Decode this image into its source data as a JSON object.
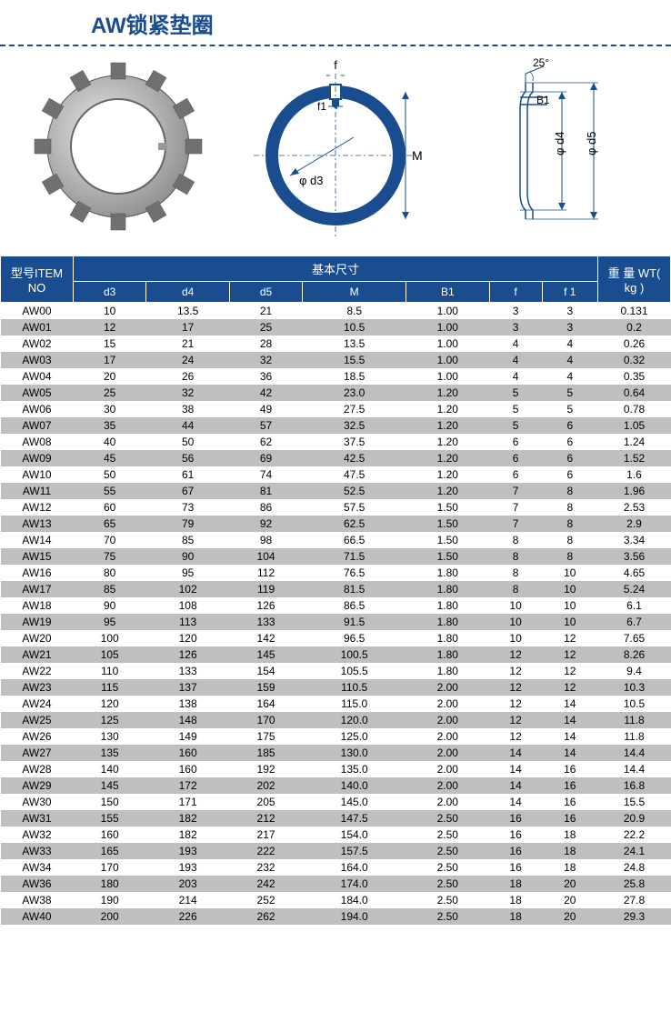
{
  "title": "AW锁紧垫圈",
  "diagram_labels": {
    "f": "f",
    "f1": "f1",
    "d3": "φ d3",
    "M": "M",
    "angle": "25°",
    "B1": "B1",
    "d4": "φ d4",
    "d5": "φ d5"
  },
  "table": {
    "header": {
      "item": "型号ITEM NO",
      "dims": "基本尺寸",
      "weight": "重 量 WT( kg )",
      "cols": [
        "d3",
        "d4",
        "d5",
        "M",
        "B1",
        "f",
        "f 1"
      ]
    },
    "colors": {
      "header_bg": "#1a4d8f",
      "header_fg": "#ffffff",
      "row_odd_bg": "#ffffff",
      "row_even_bg": "#bfbfbf"
    },
    "rows": [
      [
        "AW00",
        "10",
        "13.5",
        "21",
        "8.5",
        "1.00",
        "3",
        "3",
        "0.131"
      ],
      [
        "AW01",
        "12",
        "17",
        "25",
        "10.5",
        "1.00",
        "3",
        "3",
        "0.2"
      ],
      [
        "AW02",
        "15",
        "21",
        "28",
        "13.5",
        "1.00",
        "4",
        "4",
        "0.26"
      ],
      [
        "AW03",
        "17",
        "24",
        "32",
        "15.5",
        "1.00",
        "4",
        "4",
        "0.32"
      ],
      [
        "AW04",
        "20",
        "26",
        "36",
        "18.5",
        "1.00",
        "4",
        "4",
        "0.35"
      ],
      [
        "AW05",
        "25",
        "32",
        "42",
        "23.0",
        "1.20",
        "5",
        "5",
        "0.64"
      ],
      [
        "AW06",
        "30",
        "38",
        "49",
        "27.5",
        "1.20",
        "5",
        "5",
        "0.78"
      ],
      [
        "AW07",
        "35",
        "44",
        "57",
        "32.5",
        "1.20",
        "5",
        "6",
        "1.05"
      ],
      [
        "AW08",
        "40",
        "50",
        "62",
        "37.5",
        "1.20",
        "6",
        "6",
        "1.24"
      ],
      [
        "AW09",
        "45",
        "56",
        "69",
        "42.5",
        "1.20",
        "6",
        "6",
        "1.52"
      ],
      [
        "AW10",
        "50",
        "61",
        "74",
        "47.5",
        "1.20",
        "6",
        "6",
        "1.6"
      ],
      [
        "AW11",
        "55",
        "67",
        "81",
        "52.5",
        "1.20",
        "7",
        "8",
        "1.96"
      ],
      [
        "AW12",
        "60",
        "73",
        "86",
        "57.5",
        "1.50",
        "7",
        "8",
        "2.53"
      ],
      [
        "AW13",
        "65",
        "79",
        "92",
        "62.5",
        "1.50",
        "7",
        "8",
        "2.9"
      ],
      [
        "AW14",
        "70",
        "85",
        "98",
        "66.5",
        "1.50",
        "8",
        "8",
        "3.34"
      ],
      [
        "AW15",
        "75",
        "90",
        "104",
        "71.5",
        "1.50",
        "8",
        "8",
        "3.56"
      ],
      [
        "AW16",
        "80",
        "95",
        "112",
        "76.5",
        "1.80",
        "8",
        "10",
        "4.65"
      ],
      [
        "AW17",
        "85",
        "102",
        "119",
        "81.5",
        "1.80",
        "8",
        "10",
        "5.24"
      ],
      [
        "AW18",
        "90",
        "108",
        "126",
        "86.5",
        "1.80",
        "10",
        "10",
        "6.1"
      ],
      [
        "AW19",
        "95",
        "113",
        "133",
        "91.5",
        "1.80",
        "10",
        "10",
        "6.7"
      ],
      [
        "AW20",
        "100",
        "120",
        "142",
        "96.5",
        "1.80",
        "10",
        "12",
        "7.65"
      ],
      [
        "AW21",
        "105",
        "126",
        "145",
        "100.5",
        "1.80",
        "12",
        "12",
        "8.26"
      ],
      [
        "AW22",
        "110",
        "133",
        "154",
        "105.5",
        "1.80",
        "12",
        "12",
        "9.4"
      ],
      [
        "AW23",
        "115",
        "137",
        "159",
        "110.5",
        "2.00",
        "12",
        "12",
        "10.3"
      ],
      [
        "AW24",
        "120",
        "138",
        "164",
        "115.0",
        "2.00",
        "12",
        "14",
        "10.5"
      ],
      [
        "AW25",
        "125",
        "148",
        "170",
        "120.0",
        "2.00",
        "12",
        "14",
        "11.8"
      ],
      [
        "AW26",
        "130",
        "149",
        "175",
        "125.0",
        "2.00",
        "12",
        "14",
        "11.8"
      ],
      [
        "AW27",
        "135",
        "160",
        "185",
        "130.0",
        "2.00",
        "14",
        "14",
        "14.4"
      ],
      [
        "AW28",
        "140",
        "160",
        "192",
        "135.0",
        "2.00",
        "14",
        "16",
        "14.4"
      ],
      [
        "AW29",
        "145",
        "172",
        "202",
        "140.0",
        "2.00",
        "14",
        "16",
        "16.8"
      ],
      [
        "AW30",
        "150",
        "171",
        "205",
        "145.0",
        "2.00",
        "14",
        "16",
        "15.5"
      ],
      [
        "AW31",
        "155",
        "182",
        "212",
        "147.5",
        "2.50",
        "16",
        "16",
        "20.9"
      ],
      [
        "AW32",
        "160",
        "182",
        "217",
        "154.0",
        "2.50",
        "16",
        "18",
        "22.2"
      ],
      [
        "AW33",
        "165",
        "193",
        "222",
        "157.5",
        "2.50",
        "16",
        "18",
        "24.1"
      ],
      [
        "AW34",
        "170",
        "193",
        "232",
        "164.0",
        "2.50",
        "16",
        "18",
        "24.8"
      ],
      [
        "AW36",
        "180",
        "203",
        "242",
        "174.0",
        "2.50",
        "18",
        "20",
        "25.8"
      ],
      [
        "AW38",
        "190",
        "214",
        "252",
        "184.0",
        "2.50",
        "18",
        "20",
        "27.8"
      ],
      [
        "AW40",
        "200",
        "226",
        "262",
        "194.0",
        "2.50",
        "18",
        "20",
        "29.3"
      ]
    ]
  }
}
